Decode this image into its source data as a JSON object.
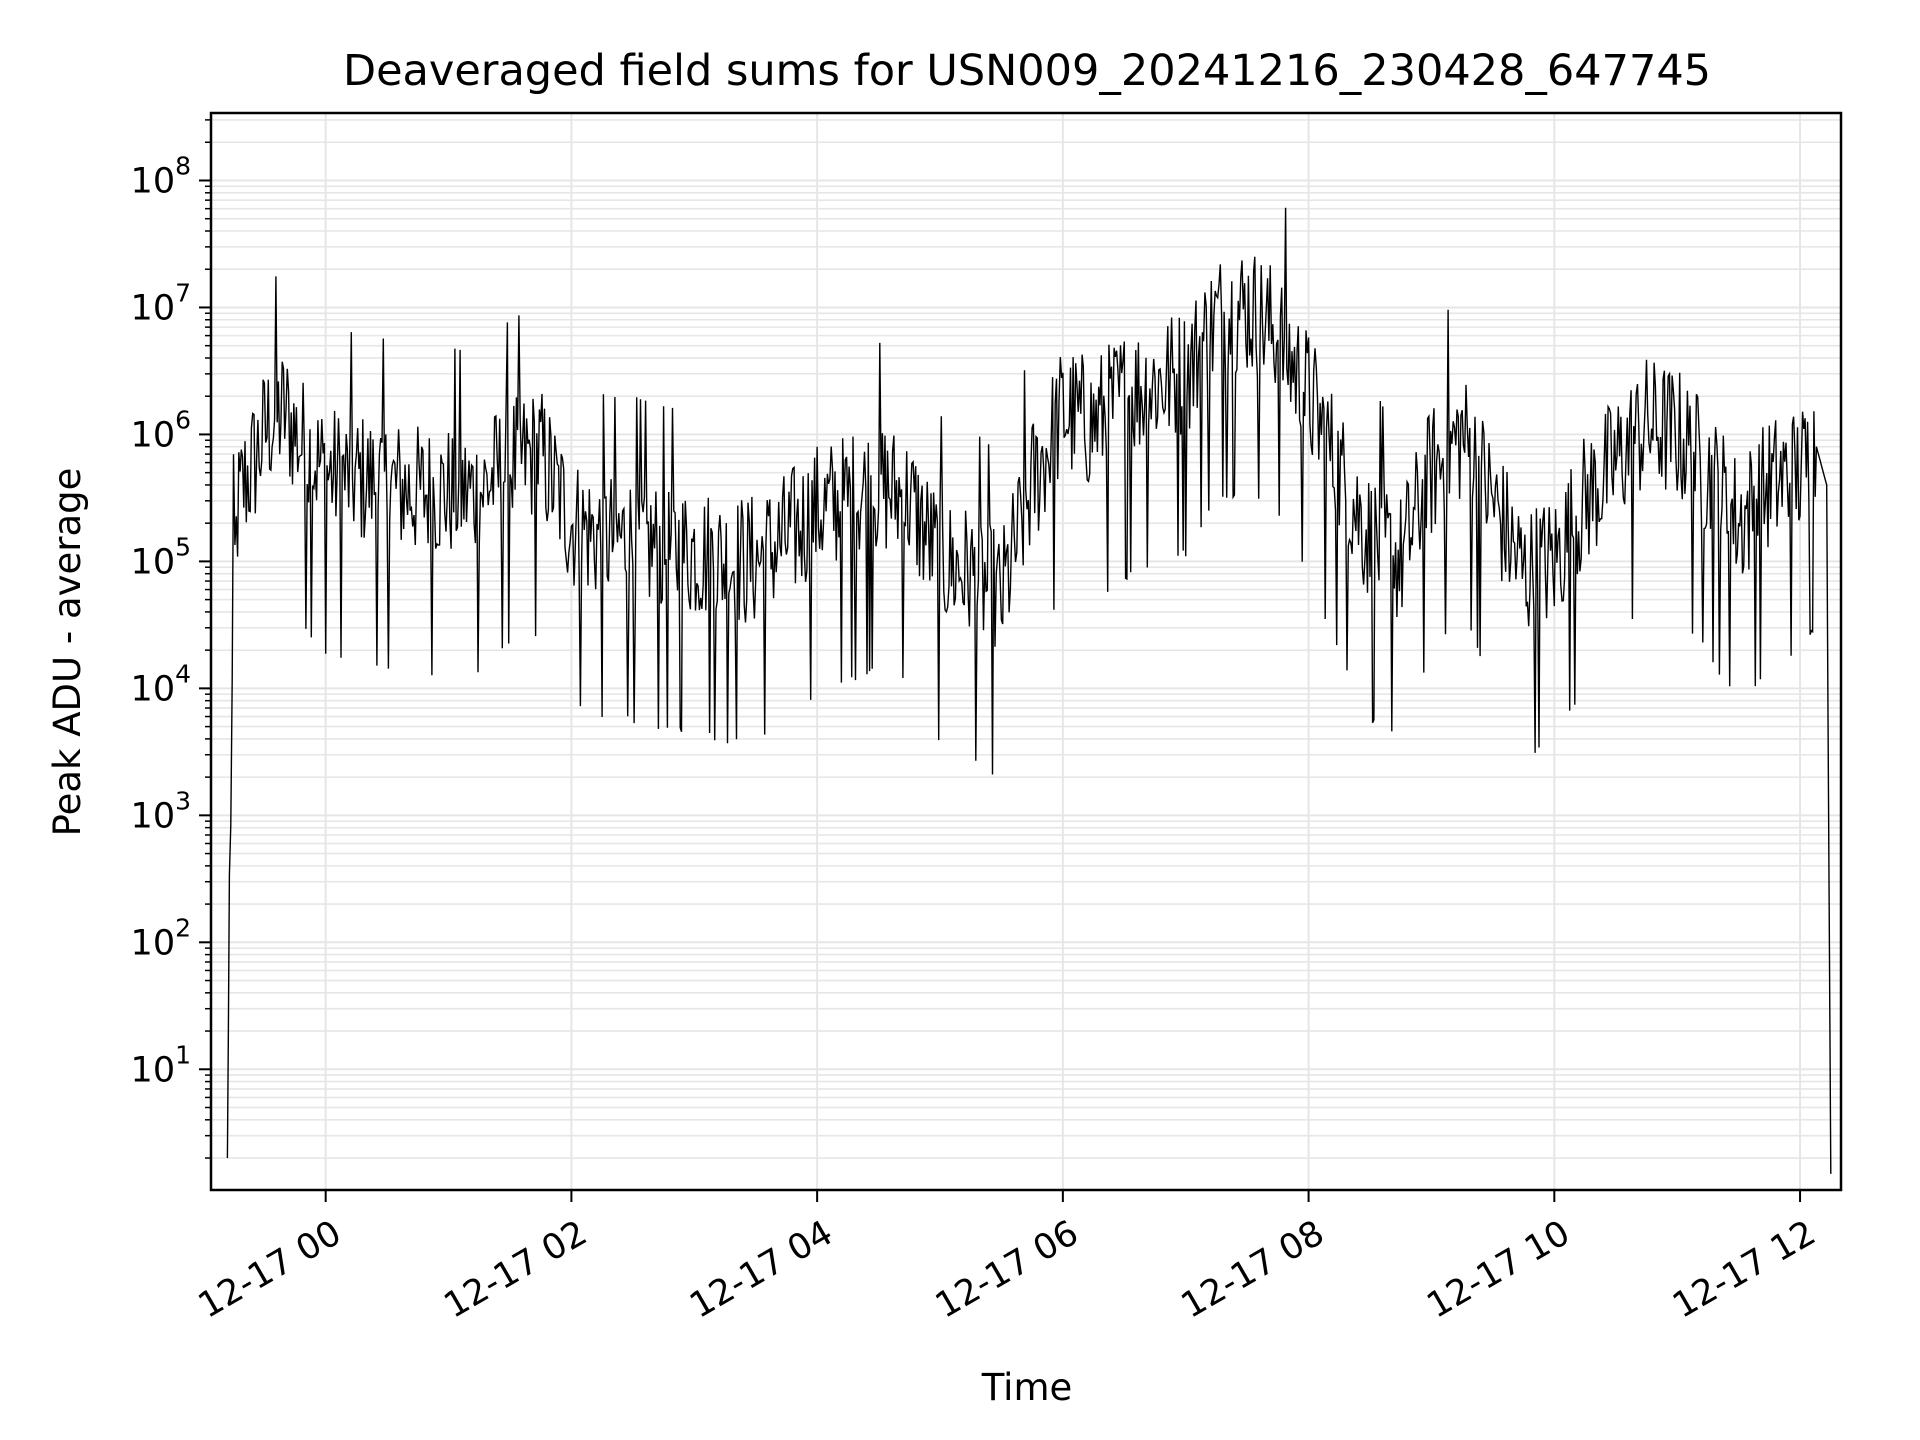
{
  "chart_data": {
    "type": "line",
    "title": "Deaveraged field sums for USN009_20241216_230428_647745",
    "xlabel": "Time",
    "ylabel": "Peak ADU - average",
    "yscale": "log",
    "ylim": [
      1.12,
      340000000
    ],
    "xlim": [
      "12-16 23:04",
      "12-17 12:20"
    ],
    "grid": true,
    "x_ticks": [
      {
        "label": "12-17 00",
        "value": "12-17 00:00"
      },
      {
        "label": "12-17 02",
        "value": "12-17 02:00"
      },
      {
        "label": "12-17 04",
        "value": "12-17 04:00"
      },
      {
        "label": "12-17 06",
        "value": "12-17 06:00"
      },
      {
        "label": "12-17 08",
        "value": "12-17 08:00"
      },
      {
        "label": "12-17 10",
        "value": "12-17 10:00"
      },
      {
        "label": "12-17 12",
        "value": "12-17 12:00"
      }
    ],
    "y_ticks": [
      {
        "base": "10",
        "exp": "1",
        "value": 10
      },
      {
        "base": "10",
        "exp": "2",
        "value": 100
      },
      {
        "base": "10",
        "exp": "3",
        "value": 1000
      },
      {
        "base": "10",
        "exp": "4",
        "value": 10000
      },
      {
        "base": "10",
        "exp": "5",
        "value": 100000
      },
      {
        "base": "10",
        "exp": "6",
        "value": 1000000
      },
      {
        "base": "10",
        "exp": "7",
        "value": 10000000
      },
      {
        "base": "10",
        "exp": "8",
        "value": 100000000
      }
    ],
    "line_color": "#000000",
    "series": [
      {
        "x": [
          "12-16 23:12",
          "12-16 23:13",
          "12-16 23:15",
          "12-16 23:17",
          "12-16 23:20",
          "12-16 23:25",
          "12-16 23:32",
          "12-16 23:40",
          "12-16 23:47",
          "12-16 23:53",
          "12-17 00:00",
          "12-17 00:15",
          "12-17 00:30",
          "12-17 00:45",
          "12-17 01:00",
          "12-17 01:15",
          "12-17 01:30",
          "12-17 01:45",
          "12-17 02:00",
          "12-17 02:15",
          "12-17 02:30",
          "12-17 02:45",
          "12-17 03:00",
          "12-17 03:15",
          "12-17 03:30",
          "12-17 03:45",
          "12-17 04:00",
          "12-17 04:15",
          "12-17 04:30",
          "12-17 04:45",
          "12-17 05:00",
          "12-17 05:15",
          "12-17 05:30",
          "12-17 05:45",
          "12-17 06:00",
          "12-17 06:15",
          "12-17 06:30",
          "12-17 06:45",
          "12-17 07:00",
          "12-17 07:15",
          "12-17 07:30",
          "12-17 07:45",
          "12-17 08:00",
          "12-17 08:15",
          "12-17 08:30",
          "12-17 08:45",
          "12-17 09:00",
          "12-17 09:15",
          "12-17 09:30",
          "12-17 09:45",
          "12-17 10:00",
          "12-17 10:15",
          "12-17 10:30",
          "12-17 10:45",
          "12-17 11:00",
          "12-17 11:15",
          "12-17 11:30",
          "12-17 11:45",
          "12-17 12:00",
          "12-17 12:08",
          "12-17 12:13",
          "12-17 12:15"
        ],
        "y": [
          2,
          230,
          50000,
          250000,
          400000,
          600000,
          1200000,
          1500000,
          900000,
          700000,
          500000,
          450000,
          400000,
          350000,
          350000,
          350000,
          600000,
          700000,
          200000,
          150000,
          150000,
          120000,
          120000,
          100000,
          100000,
          150000,
          250000,
          300000,
          400000,
          300000,
          100000,
          80000,
          50000,
          400000,
          1500000,
          1200000,
          2000000,
          2500000,
          3000000,
          8000000,
          10000000,
          6000000,
          2000000,
          500000,
          150000,
          100000,
          500000,
          1000000,
          300000,
          80000,
          100000,
          300000,
          600000,
          1200000,
          1000000,
          500000,
          200000,
          400000,
          500000,
          800000,
          400000,
          1.5
        ]
      }
    ]
  }
}
